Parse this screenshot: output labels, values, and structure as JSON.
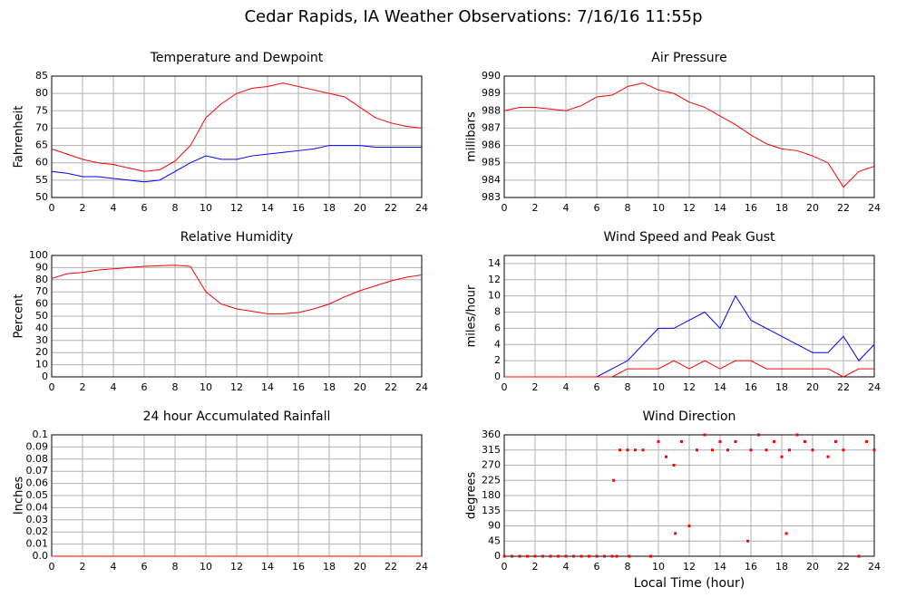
{
  "title": "Cedar Rapids, IA Weather Observations: 7/16/16 11:55p",
  "chart_data": [
    {
      "type": "line",
      "title": "Temperature and Dewpoint",
      "ylabel": "Fahrenheit",
      "x": [
        0,
        1,
        2,
        3,
        4,
        5,
        6,
        7,
        8,
        9,
        10,
        11,
        12,
        13,
        14,
        15,
        16,
        17,
        18,
        19,
        20,
        21,
        22,
        23,
        24
      ],
      "series": [
        {
          "color": "#ff0000",
          "values": [
            64,
            62.5,
            61,
            60,
            59.5,
            58.5,
            57.5,
            58,
            60.5,
            65,
            73,
            77,
            80,
            81.5,
            82,
            83,
            82,
            81,
            80,
            79,
            76,
            73,
            71.5,
            70.5,
            70
          ]
        },
        {
          "color": "#0000ff",
          "values": [
            57.5,
            57,
            56,
            56,
            55.5,
            55,
            54.5,
            55,
            57.5,
            60,
            62,
            61,
            61,
            62,
            62.5,
            63,
            63.5,
            64,
            65,
            65,
            65,
            64.5,
            64.5,
            64.5,
            64.5
          ]
        }
      ],
      "xlim": [
        0,
        24
      ],
      "xticks": [
        0,
        2,
        4,
        6,
        8,
        10,
        12,
        14,
        16,
        18,
        20,
        22,
        24
      ],
      "ylim": [
        50,
        85
      ],
      "yticks": [
        50,
        55,
        60,
        65,
        70,
        75,
        80,
        85
      ],
      "grid": true
    },
    {
      "type": "line",
      "title": "Air Pressure",
      "ylabel": "millibars",
      "x": [
        0,
        1,
        2,
        3,
        4,
        5,
        6,
        7,
        8,
        9,
        10,
        11,
        12,
        13,
        14,
        15,
        16,
        17,
        18,
        19,
        20,
        21,
        22,
        23,
        24
      ],
      "series": [
        {
          "color": "#ff0000",
          "values": [
            988,
            988.2,
            988.2,
            988.1,
            988,
            988.3,
            988.8,
            988.9,
            989.4,
            989.6,
            989.2,
            989,
            988.5,
            988.2,
            987.7,
            987.2,
            986.6,
            986.1,
            985.8,
            985.7,
            985.4,
            985,
            983.6,
            984.5,
            984.8
          ]
        }
      ],
      "xlim": [
        0,
        24
      ],
      "xticks": [
        0,
        2,
        4,
        6,
        8,
        10,
        12,
        14,
        16,
        18,
        20,
        22,
        24
      ],
      "ylim": [
        983,
        990
      ],
      "yticks": [
        983,
        984,
        985,
        986,
        987,
        988,
        989,
        990
      ],
      "grid": true
    },
    {
      "type": "line",
      "title": "Relative Humidity",
      "ylabel": "Percent",
      "x": [
        0,
        1,
        2,
        3,
        4,
        5,
        6,
        7,
        8,
        9,
        10,
        11,
        12,
        13,
        14,
        15,
        16,
        17,
        18,
        19,
        20,
        21,
        22,
        23,
        24
      ],
      "series": [
        {
          "color": "#ff0000",
          "values": [
            81,
            85,
            86,
            88,
            89,
            90,
            91,
            91.5,
            92,
            91,
            70,
            60,
            56,
            54,
            52,
            52,
            53,
            56,
            60,
            66,
            71,
            75,
            79,
            82,
            84
          ]
        }
      ],
      "xlim": [
        0,
        24
      ],
      "xticks": [
        0,
        2,
        4,
        6,
        8,
        10,
        12,
        14,
        16,
        18,
        20,
        22,
        24
      ],
      "ylim": [
        0,
        100
      ],
      "yticks": [
        0,
        10,
        20,
        30,
        40,
        50,
        60,
        70,
        80,
        90,
        100
      ],
      "grid": true
    },
    {
      "type": "line",
      "title": "Wind Speed and Peak Gust",
      "ylabel": "miles/hour",
      "x": [
        0,
        1,
        2,
        3,
        4,
        5,
        6,
        7,
        8,
        9,
        10,
        11,
        12,
        13,
        14,
        15,
        16,
        17,
        18,
        19,
        20,
        21,
        22,
        23,
        24
      ],
      "series": [
        {
          "color": "#0000ff",
          "values": [
            0,
            0,
            0,
            0,
            0,
            0,
            0,
            1,
            2,
            4,
            6,
            6,
            7,
            8,
            6,
            10,
            7,
            6,
            5,
            4,
            3,
            3,
            5,
            2,
            4
          ]
        },
        {
          "color": "#ff0000",
          "values": [
            0,
            0,
            0,
            0,
            0,
            0,
            0,
            0,
            1,
            1,
            1,
            2,
            1,
            2,
            1,
            2,
            2,
            1,
            1,
            1,
            1,
            1,
            0,
            1,
            1
          ]
        }
      ],
      "xlim": [
        0,
        24
      ],
      "xticks": [
        0,
        2,
        4,
        6,
        8,
        10,
        12,
        14,
        16,
        18,
        20,
        22,
        24
      ],
      "ylim": [
        0,
        15
      ],
      "yticks": [
        0,
        2,
        4,
        6,
        8,
        10,
        12,
        14
      ],
      "grid": true
    },
    {
      "type": "line",
      "title": "24 hour Accumulated Rainfall",
      "ylabel": "Inches",
      "x": [
        0,
        24
      ],
      "series": [
        {
          "color": "#ff0000",
          "values": [
            0,
            0
          ]
        }
      ],
      "xlim": [
        0,
        24
      ],
      "xticks": [
        0,
        2,
        4,
        6,
        8,
        10,
        12,
        14,
        16,
        18,
        20,
        22,
        24
      ],
      "ylim": [
        0,
        0.1
      ],
      "yticks": [
        {
          "value": 0,
          "label": "0.0"
        },
        0.01,
        0.02,
        0.03,
        0.04,
        0.05,
        0.06,
        0.07,
        0.08,
        0.09,
        0.1
      ],
      "grid": true
    },
    {
      "type": "scatter",
      "title": "Wind Direction",
      "ylabel": "degrees",
      "xlabel": "Local Time (hour)",
      "x": [
        0,
        0.5,
        1,
        1.5,
        2,
        2.5,
        3,
        3.5,
        4,
        4.5,
        5,
        5.5,
        6,
        6.5,
        7,
        7.1,
        7.3,
        7.5,
        8,
        8.1,
        8.5,
        9,
        9.5,
        10,
        10.5,
        11,
        11.1,
        11.5,
        12,
        12.5,
        13,
        13.5,
        14,
        14.5,
        15,
        15.8,
        16,
        16.5,
        17,
        17.5,
        18,
        18.3,
        18.5,
        19,
        19.5,
        20,
        21,
        21.5,
        22,
        23,
        23.5,
        24
      ],
      "color": "#ff0000",
      "values": [
        0,
        0,
        0,
        0,
        0,
        0,
        0,
        0,
        0,
        0,
        0,
        0,
        0,
        0,
        0,
        225,
        0,
        315,
        315,
        0,
        315,
        315,
        0,
        340,
        295,
        270,
        67.5,
        340,
        90,
        315,
        360,
        315,
        340,
        315,
        340,
        45,
        315,
        360,
        315,
        340,
        295,
        67.5,
        315,
        360,
        340,
        315,
        295,
        340,
        315,
        0,
        340,
        315
      ],
      "xlim": [
        0,
        24
      ],
      "xticks": [
        0,
        2,
        4,
        6,
        8,
        10,
        12,
        14,
        16,
        18,
        20,
        22,
        24
      ],
      "ylim": [
        0,
        360
      ],
      "yticks": [
        0,
        45,
        90,
        135,
        180,
        225,
        270,
        315,
        360
      ],
      "grid": true
    }
  ]
}
